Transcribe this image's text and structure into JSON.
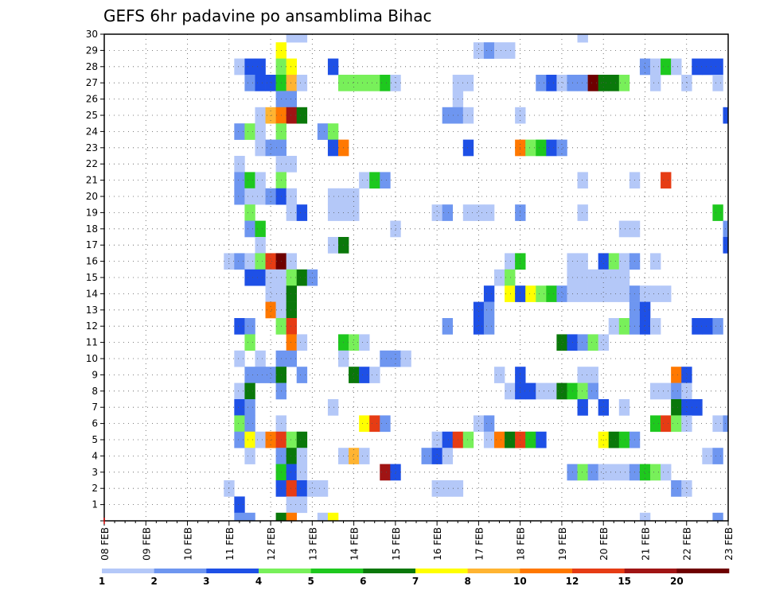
{
  "chart_data": {
    "type": "heatmap",
    "title": "GEFS 6hr padavine po ansamblima Bihac",
    "x_tick_labels": [
      "08 FEB",
      "09 FEB",
      "10 FEB",
      "11 FEB",
      "12 FEB",
      "13 FEB",
      "14 FEB",
      "15 FEB",
      "16 FEB",
      "17 FEB",
      "18 FEB",
      "19 FEB",
      "20 FEB",
      "21 FEB",
      "22 FEB",
      "23 FEB"
    ],
    "y_tick_labels": [
      "1",
      "2",
      "3",
      "4",
      "5",
      "6",
      "7",
      "8",
      "9",
      "10",
      "11",
      "12",
      "13",
      "14",
      "15",
      "16",
      "17",
      "18",
      "19",
      "20",
      "21",
      "22",
      "23",
      "24",
      "25",
      "26",
      "27",
      "28",
      "29",
      "30"
    ],
    "x_time_step_hours": 6,
    "n_timesteps": 61,
    "members_range": [
      0,
      30
    ],
    "grid": true,
    "colorbar": {
      "levels": [
        "1",
        "2",
        "3",
        "4",
        "5",
        "6",
        "7",
        "8",
        "10",
        "12",
        "15",
        "20"
      ],
      "colors": [
        "#b4c8f8",
        "#6e96f0",
        "#1e50e6",
        "#78f05a",
        "#1ec81e",
        "#0a780a",
        "#ffff00",
        "#ffb432",
        "#ff7800",
        "#e63c14",
        "#a01414",
        "#6e0000"
      ]
    },
    "cells_note": "each cell: [member, timestep_index (0 = 08 FEB 00UTC, 6h steps), level_index into colorbar.levels]",
    "cells": [
      [
        30,
        18,
        0
      ],
      [
        30,
        19,
        0
      ],
      [
        30,
        46,
        0
      ],
      [
        29,
        17,
        6
      ],
      [
        29,
        36,
        0
      ],
      [
        29,
        37,
        1
      ],
      [
        29,
        38,
        0
      ],
      [
        29,
        39,
        0
      ],
      [
        28,
        13,
        0
      ],
      [
        28,
        14,
        2
      ],
      [
        28,
        15,
        2
      ],
      [
        28,
        17,
        3
      ],
      [
        28,
        18,
        6
      ],
      [
        28,
        22,
        2
      ],
      [
        28,
        52,
        1
      ],
      [
        28,
        53,
        0
      ],
      [
        28,
        54,
        4
      ],
      [
        28,
        55,
        0
      ],
      [
        28,
        57,
        2
      ],
      [
        28,
        58,
        2
      ],
      [
        28,
        59,
        2
      ],
      [
        27,
        14,
        1
      ],
      [
        27,
        15,
        2
      ],
      [
        27,
        16,
        2
      ],
      [
        27,
        17,
        4
      ],
      [
        27,
        18,
        7
      ],
      [
        27,
        19,
        0
      ],
      [
        27,
        23,
        3
      ],
      [
        27,
        24,
        3
      ],
      [
        27,
        25,
        3
      ],
      [
        27,
        26,
        3
      ],
      [
        27,
        27,
        4
      ],
      [
        27,
        28,
        0
      ],
      [
        27,
        34,
        0
      ],
      [
        27,
        35,
        0
      ],
      [
        27,
        42,
        1
      ],
      [
        27,
        43,
        2
      ],
      [
        27,
        44,
        0
      ],
      [
        27,
        45,
        1
      ],
      [
        27,
        46,
        1
      ],
      [
        27,
        47,
        11
      ],
      [
        27,
        48,
        5
      ],
      [
        27,
        49,
        5
      ],
      [
        27,
        50,
        3
      ],
      [
        27,
        53,
        0
      ],
      [
        27,
        56,
        0
      ],
      [
        27,
        59,
        0
      ],
      [
        26,
        17,
        1
      ],
      [
        26,
        18,
        1
      ],
      [
        26,
        34,
        0
      ],
      [
        25,
        15,
        0
      ],
      [
        25,
        16,
        7
      ],
      [
        25,
        17,
        8
      ],
      [
        25,
        18,
        10
      ],
      [
        25,
        19,
        5
      ],
      [
        25,
        33,
        1
      ],
      [
        25,
        34,
        1
      ],
      [
        25,
        35,
        0
      ],
      [
        25,
        40,
        0
      ],
      [
        25,
        60,
        2
      ],
      [
        24,
        13,
        1
      ],
      [
        24,
        14,
        3
      ],
      [
        24,
        15,
        0
      ],
      [
        24,
        17,
        3
      ],
      [
        24,
        21,
        1
      ],
      [
        24,
        22,
        3
      ],
      [
        23,
        15,
        0
      ],
      [
        23,
        16,
        1
      ],
      [
        23,
        17,
        1
      ],
      [
        23,
        22,
        2
      ],
      [
        23,
        23,
        8
      ],
      [
        23,
        35,
        2
      ],
      [
        23,
        40,
        8
      ],
      [
        23,
        41,
        3
      ],
      [
        23,
        42,
        4
      ],
      [
        23,
        43,
        2
      ],
      [
        23,
        44,
        1
      ],
      [
        22,
        13,
        0
      ],
      [
        22,
        17,
        0
      ],
      [
        22,
        18,
        0
      ],
      [
        21,
        13,
        1
      ],
      [
        21,
        14,
        4
      ],
      [
        21,
        15,
        0
      ],
      [
        21,
        17,
        3
      ],
      [
        21,
        25,
        0
      ],
      [
        21,
        26,
        4
      ],
      [
        21,
        27,
        1
      ],
      [
        21,
        46,
        0
      ],
      [
        21,
        51,
        0
      ],
      [
        21,
        54,
        9
      ],
      [
        20,
        13,
        1
      ],
      [
        20,
        14,
        0
      ],
      [
        20,
        15,
        0
      ],
      [
        20,
        16,
        1
      ],
      [
        20,
        17,
        2
      ],
      [
        20,
        18,
        0
      ],
      [
        20,
        22,
        0
      ],
      [
        20,
        23,
        0
      ],
      [
        20,
        24,
        0
      ],
      [
        19,
        14,
        3
      ],
      [
        19,
        18,
        0
      ],
      [
        19,
        19,
        2
      ],
      [
        19,
        22,
        0
      ],
      [
        19,
        23,
        0
      ],
      [
        19,
        24,
        0
      ],
      [
        19,
        32,
        0
      ],
      [
        19,
        33,
        1
      ],
      [
        19,
        35,
        0
      ],
      [
        19,
        36,
        0
      ],
      [
        19,
        37,
        0
      ],
      [
        19,
        40,
        1
      ],
      [
        19,
        46,
        0
      ],
      [
        19,
        59,
        4
      ],
      [
        18,
        14,
        1
      ],
      [
        18,
        15,
        4
      ],
      [
        18,
        28,
        0
      ],
      [
        18,
        50,
        0
      ],
      [
        18,
        51,
        0
      ],
      [
        18,
        60,
        1
      ],
      [
        17,
        15,
        0
      ],
      [
        17,
        22,
        0
      ],
      [
        17,
        23,
        5
      ],
      [
        17,
        60,
        2
      ],
      [
        16,
        12,
        0
      ],
      [
        16,
        13,
        1
      ],
      [
        16,
        14,
        0
      ],
      [
        16,
        15,
        3
      ],
      [
        16,
        16,
        9
      ],
      [
        16,
        17,
        11
      ],
      [
        16,
        18,
        0
      ],
      [
        16,
        39,
        0
      ],
      [
        16,
        40,
        4
      ],
      [
        16,
        45,
        0
      ],
      [
        16,
        46,
        0
      ],
      [
        16,
        48,
        2
      ],
      [
        16,
        49,
        3
      ],
      [
        16,
        50,
        0
      ],
      [
        16,
        51,
        1
      ],
      [
        16,
        53,
        0
      ],
      [
        15,
        14,
        2
      ],
      [
        15,
        15,
        2
      ],
      [
        15,
        16,
        0
      ],
      [
        15,
        17,
        0
      ],
      [
        15,
        18,
        3
      ],
      [
        15,
        19,
        5
      ],
      [
        15,
        20,
        1
      ],
      [
        15,
        38,
        0
      ],
      [
        15,
        39,
        3
      ],
      [
        15,
        45,
        0
      ],
      [
        15,
        46,
        0
      ],
      [
        15,
        47,
        0
      ],
      [
        15,
        48,
        0
      ],
      [
        15,
        49,
        0
      ],
      [
        15,
        50,
        0
      ],
      [
        14,
        16,
        0
      ],
      [
        14,
        17,
        0
      ],
      [
        14,
        18,
        5
      ],
      [
        14,
        37,
        2
      ],
      [
        14,
        39,
        6
      ],
      [
        14,
        40,
        2
      ],
      [
        14,
        41,
        6
      ],
      [
        14,
        42,
        3
      ],
      [
        14,
        43,
        4
      ],
      [
        14,
        44,
        1
      ],
      [
        14,
        45,
        0
      ],
      [
        14,
        46,
        0
      ],
      [
        14,
        47,
        0
      ],
      [
        14,
        48,
        0
      ],
      [
        14,
        49,
        0
      ],
      [
        14,
        50,
        0
      ],
      [
        14,
        51,
        1
      ],
      [
        14,
        52,
        0
      ],
      [
        14,
        53,
        0
      ],
      [
        14,
        54,
        0
      ],
      [
        13,
        16,
        8
      ],
      [
        13,
        17,
        0
      ],
      [
        13,
        18,
        5
      ],
      [
        13,
        36,
        2
      ],
      [
        13,
        37,
        1
      ],
      [
        13,
        51,
        1
      ],
      [
        13,
        52,
        2
      ],
      [
        12,
        13,
        2
      ],
      [
        12,
        14,
        1
      ],
      [
        12,
        17,
        3
      ],
      [
        12,
        18,
        9
      ],
      [
        12,
        33,
        1
      ],
      [
        12,
        36,
        2
      ],
      [
        12,
        37,
        1
      ],
      [
        12,
        49,
        0
      ],
      [
        12,
        50,
        3
      ],
      [
        12,
        51,
        1
      ],
      [
        12,
        52,
        2
      ],
      [
        12,
        53,
        0
      ],
      [
        12,
        57,
        2
      ],
      [
        12,
        58,
        2
      ],
      [
        12,
        59,
        1
      ],
      [
        11,
        14,
        3
      ],
      [
        11,
        18,
        8
      ],
      [
        11,
        19,
        0
      ],
      [
        11,
        23,
        4
      ],
      [
        11,
        24,
        3
      ],
      [
        11,
        25,
        0
      ],
      [
        11,
        44,
        5
      ],
      [
        11,
        45,
        2
      ],
      [
        11,
        46,
        1
      ],
      [
        11,
        47,
        3
      ],
      [
        11,
        48,
        0
      ],
      [
        10,
        13,
        0
      ],
      [
        10,
        15,
        0
      ],
      [
        10,
        17,
        1
      ],
      [
        10,
        18,
        1
      ],
      [
        10,
        23,
        0
      ],
      [
        10,
        27,
        1
      ],
      [
        10,
        28,
        1
      ],
      [
        10,
        29,
        0
      ],
      [
        9,
        14,
        1
      ],
      [
        9,
        15,
        1
      ],
      [
        9,
        16,
        1
      ],
      [
        9,
        17,
        5
      ],
      [
        9,
        19,
        1
      ],
      [
        9,
        24,
        5
      ],
      [
        9,
        25,
        2
      ],
      [
        9,
        26,
        0
      ],
      [
        9,
        38,
        0
      ],
      [
        9,
        40,
        2
      ],
      [
        9,
        46,
        0
      ],
      [
        9,
        47,
        0
      ],
      [
        9,
        55,
        8
      ],
      [
        9,
        56,
        2
      ],
      [
        8,
        13,
        0
      ],
      [
        8,
        14,
        5
      ],
      [
        8,
        17,
        1
      ],
      [
        8,
        39,
        0
      ],
      [
        8,
        40,
        2
      ],
      [
        8,
        41,
        2
      ],
      [
        8,
        42,
        0
      ],
      [
        8,
        43,
        0
      ],
      [
        8,
        44,
        5
      ],
      [
        8,
        45,
        4
      ],
      [
        8,
        46,
        3
      ],
      [
        8,
        47,
        1
      ],
      [
        8,
        53,
        0
      ],
      [
        8,
        54,
        0
      ],
      [
        8,
        55,
        1
      ],
      [
        8,
        56,
        0
      ],
      [
        7,
        13,
        2
      ],
      [
        7,
        14,
        1
      ],
      [
        7,
        22,
        0
      ],
      [
        7,
        46,
        2
      ],
      [
        7,
        48,
        2
      ],
      [
        7,
        50,
        0
      ],
      [
        7,
        55,
        5
      ],
      [
        7,
        56,
        2
      ],
      [
        7,
        57,
        2
      ],
      [
        6,
        13,
        3
      ],
      [
        6,
        14,
        1
      ],
      [
        6,
        17,
        0
      ],
      [
        6,
        25,
        6
      ],
      [
        6,
        26,
        9
      ],
      [
        6,
        27,
        1
      ],
      [
        6,
        36,
        0
      ],
      [
        6,
        37,
        1
      ],
      [
        6,
        53,
        4
      ],
      [
        6,
        54,
        9
      ],
      [
        6,
        55,
        3
      ],
      [
        6,
        56,
        0
      ],
      [
        6,
        59,
        0
      ],
      [
        6,
        60,
        1
      ],
      [
        5,
        13,
        1
      ],
      [
        5,
        14,
        6
      ],
      [
        5,
        15,
        0
      ],
      [
        5,
        16,
        8
      ],
      [
        5,
        17,
        9
      ],
      [
        5,
        18,
        3
      ],
      [
        5,
        19,
        5
      ],
      [
        5,
        32,
        0
      ],
      [
        5,
        33,
        2
      ],
      [
        5,
        34,
        9
      ],
      [
        5,
        35,
        3
      ],
      [
        5,
        37,
        0
      ],
      [
        5,
        38,
        8
      ],
      [
        5,
        39,
        5
      ],
      [
        5,
        40,
        9
      ],
      [
        5,
        41,
        4
      ],
      [
        5,
        42,
        2
      ],
      [
        5,
        48,
        6
      ],
      [
        5,
        49,
        5
      ],
      [
        5,
        50,
        4
      ],
      [
        5,
        51,
        1
      ],
      [
        4,
        14,
        0
      ],
      [
        4,
        17,
        1
      ],
      [
        4,
        18,
        5
      ],
      [
        4,
        19,
        0
      ],
      [
        4,
        23,
        0
      ],
      [
        4,
        24,
        7
      ],
      [
        4,
        25,
        0
      ],
      [
        4,
        31,
        1
      ],
      [
        4,
        32,
        2
      ],
      [
        4,
        33,
        0
      ],
      [
        4,
        58,
        0
      ],
      [
        4,
        59,
        1
      ],
      [
        3,
        17,
        4
      ],
      [
        3,
        18,
        2
      ],
      [
        3,
        19,
        0
      ],
      [
        3,
        27,
        10
      ],
      [
        3,
        28,
        2
      ],
      [
        3,
        45,
        1
      ],
      [
        3,
        46,
        3
      ],
      [
        3,
        47,
        1
      ],
      [
        3,
        48,
        0
      ],
      [
        3,
        49,
        0
      ],
      [
        3,
        50,
        0
      ],
      [
        3,
        51,
        1
      ],
      [
        3,
        52,
        4
      ],
      [
        3,
        53,
        3
      ],
      [
        3,
        54,
        0
      ],
      [
        2,
        12,
        0
      ],
      [
        2,
        17,
        2
      ],
      [
        2,
        18,
        9
      ],
      [
        2,
        19,
        2
      ],
      [
        2,
        20,
        0
      ],
      [
        2,
        21,
        0
      ],
      [
        2,
        32,
        0
      ],
      [
        2,
        33,
        0
      ],
      [
        2,
        34,
        0
      ],
      [
        2,
        55,
        1
      ],
      [
        2,
        56,
        0
      ],
      [
        1,
        13,
        2
      ],
      [
        1,
        18,
        0
      ],
      [
        1,
        19,
        0
      ],
      [
        0,
        13,
        1
      ],
      [
        0,
        14,
        1
      ],
      [
        0,
        17,
        5
      ],
      [
        0,
        18,
        8
      ],
      [
        0,
        21,
        0
      ],
      [
        0,
        22,
        6
      ],
      [
        0,
        52,
        0
      ],
      [
        0,
        59,
        1
      ]
    ]
  }
}
